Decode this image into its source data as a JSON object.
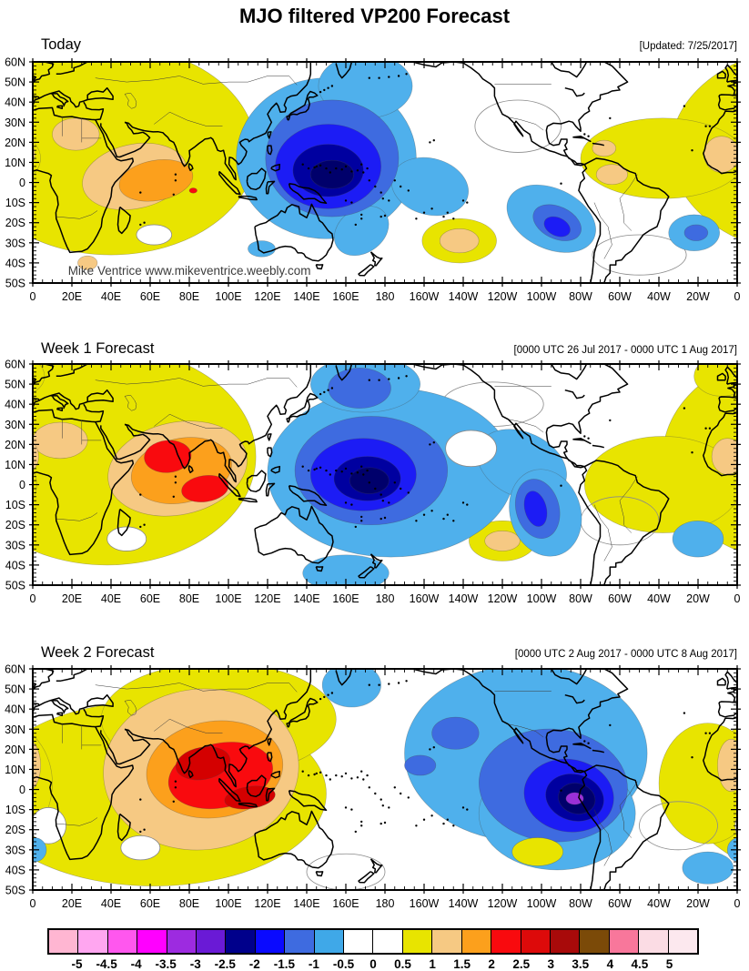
{
  "page": {
    "title": "MJO filtered VP200 Forecast"
  },
  "panels": [
    {
      "title": "Today",
      "right_label": "[Updated: 7/25/2017]",
      "watermark": "Mike Ventrice www.mikeventrice.weebly.com"
    },
    {
      "title": "Week 1 Forecast",
      "right_label": "[0000 UTC 26 Jul 2017 - 0000 UTC 1 Aug 2017]"
    },
    {
      "title": "Week 2 Forecast",
      "right_label": "[0000 UTC 2 Aug 2017 - 0000 UTC 8 Aug 2017]"
    }
  ],
  "axes": {
    "lat_labels": [
      "60N",
      "50N",
      "40N",
      "30N",
      "20N",
      "10N",
      "0",
      "10S",
      "20S",
      "30S",
      "40S",
      "50S"
    ],
    "lon_labels": [
      "0",
      "20E",
      "40E",
      "60E",
      "80E",
      "100E",
      "120E",
      "140E",
      "160E",
      "180",
      "160W",
      "140W",
      "120W",
      "100W",
      "80W",
      "60W",
      "40W",
      "20W",
      "0"
    ]
  },
  "colorbar": {
    "ticks": [
      "-5",
      "-4.5",
      "-4",
      "-3.5",
      "-3",
      "-2.5",
      "-2",
      "-1.5",
      "-1",
      "-0.5",
      "0",
      "0.5",
      "1",
      "1.5",
      "2",
      "2.5",
      "3",
      "3.5",
      "4",
      "4.5",
      "5"
    ],
    "colors": [
      "#FFB6D2",
      "#FFA6F0",
      "#FF57EE",
      "#FF00FF",
      "#9D2BE0",
      "#6A1AD6",
      "#00008B",
      "#0A0AFF",
      "#3E6BE0",
      "#3FA8E8",
      "#FFFFFF",
      "#FFFFFF",
      "#E8E400",
      "#F6C983",
      "#FCA01C",
      "#F90A0E",
      "#DD0A0A",
      "#A80A0A",
      "#7B4A08",
      "#F8779B",
      "#FBDCE4",
      "#FCE8EE"
    ]
  },
  "chart_data": {
    "type": "heatmap",
    "subtype": "filled_contour_world_map",
    "projection": "equirectangular",
    "x_axis": "longitude, 0 eastward through 180 to 0",
    "y_axis": "latitude, 60N to 50S",
    "contour_interval": 0.5,
    "value_range": [
      -5,
      5
    ],
    "levels_value_map": {
      "y": 0.75,
      "t": 1.25,
      "o": 1.75,
      "r": 2.25,
      "d": 2.75,
      "c": -0.75,
      "R": -1.25,
      "b": -1.75,
      "n": -2.25,
      "N": -2.75,
      "p": -3.25,
      "w": 0,
      "z": 0
    },
    "palette": {
      "y": "#E8E400",
      "t": "#F6C983",
      "o": "#FCA01C",
      "r": "#F90A0E",
      "d": "#D40000",
      "c": "#4FB0EC",
      "R": "#3E6BE0",
      "b": "#1C1CF5",
      "n": "#0000A0",
      "N": "#00006B",
      "p": "#9B30D8",
      "w": "#FFFFFF",
      "z": "none"
    },
    "panels": [
      {
        "title": "Today",
        "period": "Updated 7/25/2017",
        "extrema": [
          {
            "lon_deg": 150,
            "lat_deg": 5,
            "value_approx": -2.6
          },
          {
            "lon_deg": 268,
            "lat_deg": -22,
            "value_approx": -1.8
          },
          {
            "lon_deg": 339,
            "lat_deg": -25,
            "value_approx": -1.3
          },
          {
            "lon_deg": 63,
            "lat_deg": 1,
            "value_approx": 1.9
          },
          {
            "lon_deg": 82,
            "lat_deg": -4,
            "value_approx": 2.1
          },
          {
            "lon_deg": 218,
            "lat_deg": -29,
            "value_approx": 1.3
          }
        ],
        "blobs": [
          [
            "y",
            40,
            16,
            74,
            52,
            0
          ],
          [
            "y",
            322,
            12,
            42,
            20,
            0
          ],
          [
            "y",
            218,
            -29,
            19,
            11,
            0
          ],
          [
            "t",
            22,
            24,
            12,
            8,
            0
          ],
          [
            "t",
            52,
            3,
            27,
            16,
            -12
          ],
          [
            "t",
            28,
            -40,
            5,
            3.5,
            0
          ],
          [
            "t",
            292,
            17,
            6,
            4,
            0
          ],
          [
            "t",
            296,
            4,
            8,
            5,
            0
          ],
          [
            "t",
            352,
            14,
            9,
            9,
            0
          ],
          [
            "t",
            218,
            -29,
            10,
            6,
            0
          ],
          [
            "o",
            63,
            1,
            19,
            10,
            -10
          ],
          [
            "r",
            82,
            -4,
            2,
            1.3,
            0
          ],
          [
            "w",
            62,
            -26,
            9,
            5,
            0
          ],
          [
            "z",
            248,
            28,
            22,
            13,
            0
          ],
          [
            "z",
            310,
            -36,
            24,
            10,
            0
          ],
          [
            "c",
            150,
            12,
            46,
            40,
            0
          ],
          [
            "c",
            170,
            48,
            24,
            16,
            0
          ],
          [
            "c",
            203,
            -2,
            20,
            14,
            15
          ],
          [
            "c",
            168,
            -24,
            15,
            11,
            -35
          ],
          [
            "c",
            117,
            -33,
            7,
            4,
            0
          ],
          [
            "c",
            265,
            -18,
            24,
            15,
            25
          ],
          [
            "c",
            338,
            -25,
            13,
            9,
            0
          ],
          [
            "R",
            153,
            12,
            34,
            29,
            0
          ],
          [
            "R",
            268,
            -20,
            13,
            8,
            25
          ],
          [
            "R",
            339,
            -25,
            6,
            4,
            0
          ],
          [
            "b",
            151,
            8,
            27,
            21,
            0
          ],
          [
            "b",
            268,
            -22,
            7,
            4.5,
            25
          ],
          [
            "n",
            151,
            6,
            18,
            13,
            0
          ],
          [
            "N",
            153,
            4,
            11,
            7,
            0
          ]
        ]
      },
      {
        "title": "Week 1 Forecast",
        "period": "0000 UTC 26 Jul 2017 - 0000 UTC 1 Aug 2017",
        "extrema": [
          {
            "lon_deg": 172,
            "lat_deg": 2,
            "value_approx": -2.7
          },
          {
            "lon_deg": 258,
            "lat_deg": -12,
            "value_approx": -1.8
          },
          {
            "lon_deg": 69,
            "lat_deg": 14,
            "value_approx": 2.3
          },
          {
            "lon_deg": 88,
            "lat_deg": -2,
            "value_approx": 2.3
          },
          {
            "lon_deg": 240,
            "lat_deg": -28,
            "value_approx": 1.3
          }
        ],
        "blobs": [
          [
            "y",
            38,
            14,
            76,
            54,
            0
          ],
          [
            "y",
            322,
            0,
            40,
            24,
            0
          ],
          [
            "y",
            352,
            54,
            14,
            10,
            0
          ],
          [
            "y",
            240,
            -28,
            17,
            10,
            0
          ],
          [
            "t",
            14,
            22,
            14,
            9,
            0
          ],
          [
            "t",
            74,
            8,
            36,
            23,
            -12
          ],
          [
            "t",
            355,
            14,
            8,
            9,
            0
          ],
          [
            "t",
            240,
            -28,
            9,
            5,
            0
          ],
          [
            "o",
            76,
            7,
            26,
            16,
            -12
          ],
          [
            "r",
            69,
            14,
            12,
            8,
            -5
          ],
          [
            "r",
            88,
            -2,
            12,
            6.5,
            -8
          ],
          [
            "w",
            48,
            -27,
            10,
            6,
            0
          ],
          [
            "z",
            300,
            -18,
            20,
            12,
            0
          ],
          [
            "z",
            235,
            40,
            26,
            11,
            0
          ],
          [
            "c",
            183,
            6,
            63,
            42,
            0
          ],
          [
            "c",
            170,
            50,
            28,
            14,
            0
          ],
          [
            "c",
            250,
            10,
            24,
            16,
            25
          ],
          [
            "c",
            262,
            -14,
            18,
            22,
            -18
          ],
          [
            "c",
            160,
            -44,
            22,
            9,
            0
          ],
          [
            "c",
            340,
            -27,
            13,
            9,
            0
          ],
          [
            "w",
            224,
            18,
            13,
            9,
            0
          ],
          [
            "R",
            173,
            7,
            39,
            27,
            0
          ],
          [
            "R",
            167,
            48,
            16,
            10,
            0
          ],
          [
            "R",
            258,
            -12,
            11,
            15,
            -15
          ],
          [
            "b",
            169,
            5,
            27,
            18,
            0
          ],
          [
            "b",
            257,
            -12,
            5.5,
            9,
            -15
          ],
          [
            "n",
            171,
            3,
            17,
            11,
            0
          ],
          [
            "N",
            172,
            2,
            10,
            6.5,
            0
          ]
        ]
      },
      {
        "title": "Week 2 Forecast",
        "period": "0000 UTC 2 Aug 2017 - 0000 UTC 8 Aug 2017",
        "extrema": [
          {
            "lon_deg": 277,
            "lat_deg": -5,
            "value_approx": -3.2
          },
          {
            "lon_deg": 87,
            "lat_deg": 13,
            "value_approx": 2.8
          },
          {
            "lon_deg": 111,
            "lat_deg": -4,
            "value_approx": 2.8
          },
          {
            "lon_deg": 258,
            "lat_deg": -31,
            "value_approx": 0.8
          }
        ],
        "blobs": [
          [
            "y",
            62,
            -2,
            88,
            46,
            0
          ],
          [
            "y",
            95,
            35,
            60,
            28,
            0
          ],
          [
            "y",
            345,
            3,
            25,
            30,
            0
          ],
          [
            "t",
            86,
            10,
            50,
            40,
            -6
          ],
          [
            "t",
            357,
            12,
            7,
            13,
            0
          ],
          [
            "o",
            93,
            10,
            35,
            24,
            -8
          ],
          [
            "r",
            96,
            7,
            27,
            16,
            -12
          ],
          [
            "d",
            87,
            13,
            14,
            8,
            -10
          ],
          [
            "d",
            111,
            -4,
            13,
            5.5,
            -8
          ],
          [
            "w",
            55,
            -29,
            10,
            6,
            0
          ],
          [
            "w",
            8,
            -18,
            9,
            9,
            0
          ],
          [
            "z",
            330,
            -18,
            20,
            12,
            0
          ],
          [
            "z",
            160,
            -41,
            20,
            9,
            0
          ],
          [
            "c",
            252,
            18,
            62,
            44,
            0
          ],
          [
            "c",
            268,
            -12,
            40,
            28,
            0
          ],
          [
            "c",
            163,
            52,
            15,
            11,
            0
          ],
          [
            "c",
            345,
            -39,
            13,
            8,
            0
          ],
          [
            "c",
            1,
            -30,
            6,
            6,
            0
          ],
          [
            "R",
            266,
            2,
            38,
            28,
            5
          ],
          [
            "R",
            216,
            28,
            12,
            8,
            0
          ],
          [
            "R",
            198,
            12,
            8,
            5,
            0
          ],
          [
            "b",
            274,
            -3,
            23,
            18,
            10
          ],
          [
            "n",
            277,
            -4,
            15,
            11.5,
            15
          ],
          [
            "N",
            278,
            -4.5,
            9.5,
            7.5,
            15
          ],
          [
            "p",
            277,
            -4.5,
            4.5,
            3,
            0
          ],
          [
            "y",
            258,
            -31,
            13,
            7,
            0
          ]
        ]
      }
    ]
  }
}
